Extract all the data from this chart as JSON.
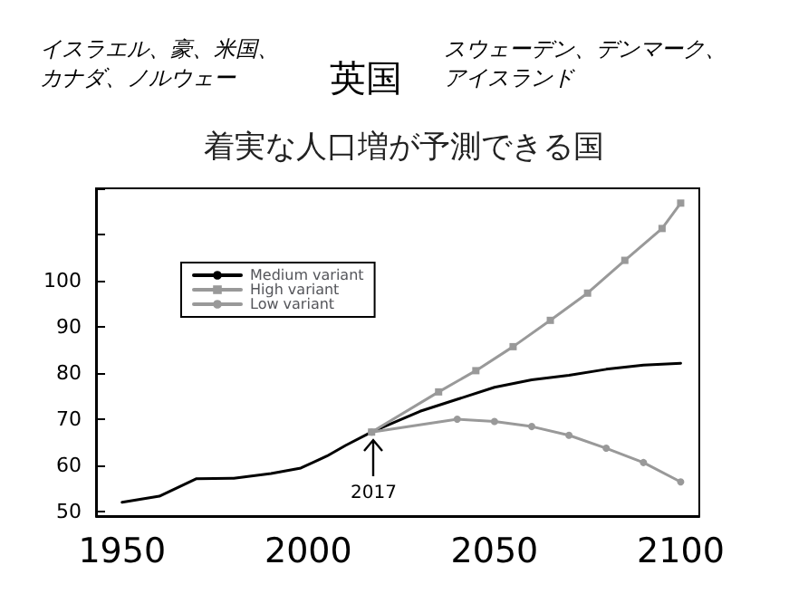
{
  "chart_data": {
    "type": "line",
    "title": "着実な人口増が予測できる国",
    "annotations": [
      "イスラエル、豪、米国、カナダ、ノルウェー",
      "英国",
      "スウェーデン、デンマーク、アイスランド",
      "2017"
    ],
    "xlim": [
      1943,
      2105
    ],
    "xticks": [
      1950,
      2000,
      2050,
      2100
    ],
    "ylim": [
      49,
      120
    ],
    "yticks": [
      50,
      60,
      70,
      80,
      90,
      100,
      {
        "value": 110,
        "label": null
      },
      {
        "value": 120,
        "label": null
      }
    ],
    "grid": false,
    "legend": "top left",
    "line_style": "solid",
    "series": [
      {
        "name": "Medium variant",
        "color": "#000000",
        "marker": "none",
        "x": [
          1950,
          1960,
          1970,
          1980,
          1990,
          1998,
          2005,
          2010,
          2017,
          2030,
          2040,
          2050,
          2060,
          2070,
          2080,
          2090,
          2100
        ],
        "values": [
          52.0,
          53.3,
          57.1,
          57.2,
          58.2,
          59.4,
          62.0,
          64.3,
          67.2,
          71.7,
          74.3,
          76.9,
          78.5,
          79.5,
          80.8,
          81.7,
          82.1
        ]
      },
      {
        "name": "High variant",
        "color": "#999999",
        "marker": "square",
        "x": [
          2017,
          2035,
          2045,
          2055,
          2065,
          2075,
          2085,
          2095,
          2100
        ],
        "values": [
          67.2,
          75.9,
          80.5,
          85.7,
          91.4,
          97.3,
          104.4,
          111.3,
          116.8
        ]
      },
      {
        "name": "Low variant",
        "color": "#999999",
        "marker": "circle",
        "x": [
          2017,
          2040,
          2050,
          2060,
          2070,
          2080,
          2090,
          2100
        ],
        "values": [
          67.2,
          70.0,
          69.5,
          68.4,
          66.5,
          63.7,
          60.6,
          56.4
        ]
      }
    ]
  }
}
